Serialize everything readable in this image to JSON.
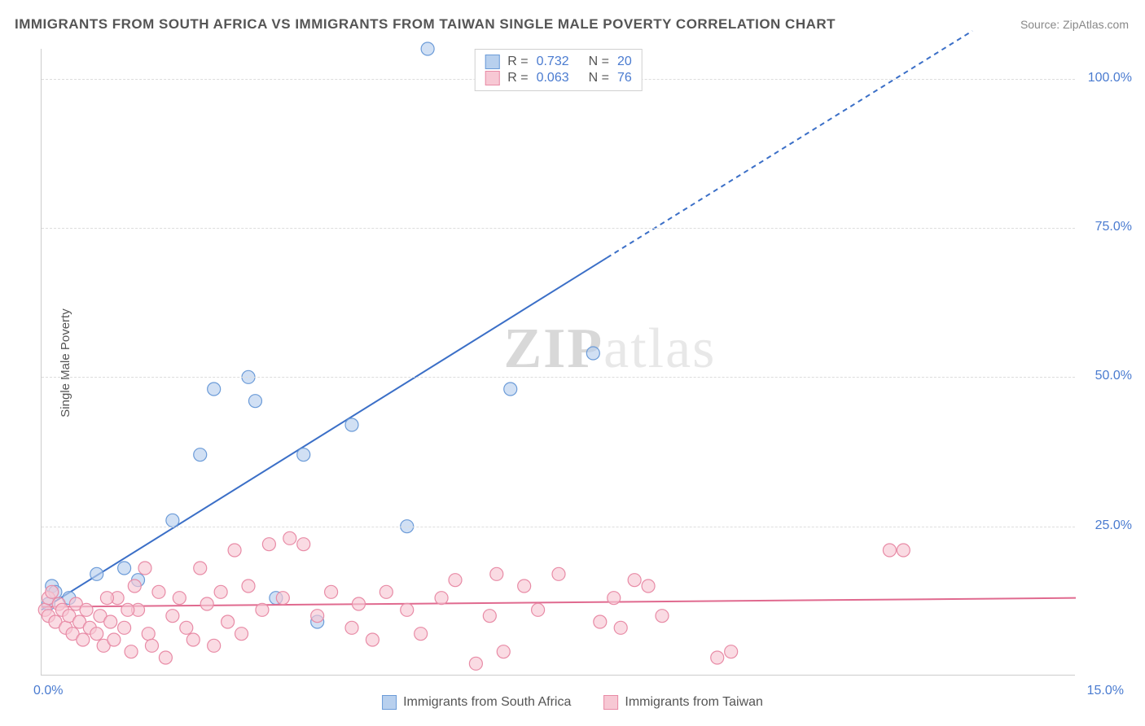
{
  "title": "IMMIGRANTS FROM SOUTH AFRICA VS IMMIGRANTS FROM TAIWAN SINGLE MALE POVERTY CORRELATION CHART",
  "source_prefix": "Source: ",
  "source": "ZipAtlas.com",
  "y_axis_label": "Single Male Poverty",
  "watermark_bold": "ZIP",
  "watermark_rest": "atlas",
  "chart": {
    "type": "scatter-with-regression",
    "background_color": "#ffffff",
    "grid_color": "#dddddd",
    "axis_color": "#cccccc",
    "text_color": "#555555",
    "value_color": "#4a7bd0",
    "xlim": [
      0,
      15
    ],
    "ylim": [
      0,
      105
    ],
    "y_ticks": [
      {
        "value": 25,
        "label": "25.0%"
      },
      {
        "value": 50,
        "label": "50.0%"
      },
      {
        "value": 75,
        "label": "75.0%"
      },
      {
        "value": 100,
        "label": "100.0%"
      }
    ],
    "x_ticks": [
      {
        "value": 0,
        "label": "0.0%"
      },
      {
        "value": 15,
        "label": "15.0%"
      }
    ],
    "marker_radius": 8,
    "marker_stroke_width": 1.2,
    "line_width": 2,
    "series": [
      {
        "id": "south_africa",
        "label": "Immigrants from South Africa",
        "color_fill": "#b8d0ee",
        "color_stroke": "#6b9bd8",
        "line_color": "#3b6fc7",
        "r_label": "R  =",
        "r_value": "0.732",
        "n_label": "N  =",
        "n_value": "20",
        "regression": {
          "x1": 0,
          "y1": 11,
          "x2": 8.2,
          "y2": 70,
          "dash_x2": 13.5,
          "dash_y2": 108
        },
        "points": [
          {
            "x": 0.1,
            "y": 12
          },
          {
            "x": 0.15,
            "y": 15
          },
          {
            "x": 0.2,
            "y": 14
          },
          {
            "x": 0.4,
            "y": 13
          },
          {
            "x": 0.8,
            "y": 17
          },
          {
            "x": 1.2,
            "y": 18
          },
          {
            "x": 1.4,
            "y": 16
          },
          {
            "x": 1.9,
            "y": 26
          },
          {
            "x": 2.3,
            "y": 37
          },
          {
            "x": 2.5,
            "y": 48
          },
          {
            "x": 3.0,
            "y": 50
          },
          {
            "x": 3.1,
            "y": 46
          },
          {
            "x": 3.4,
            "y": 13
          },
          {
            "x": 3.8,
            "y": 37
          },
          {
            "x": 4.0,
            "y": 9
          },
          {
            "x": 4.5,
            "y": 42
          },
          {
            "x": 5.3,
            "y": 25
          },
          {
            "x": 5.6,
            "y": 105
          },
          {
            "x": 6.8,
            "y": 48
          },
          {
            "x": 8.0,
            "y": 54
          }
        ]
      },
      {
        "id": "taiwan",
        "label": "Immigrants from Taiwan",
        "color_fill": "#f7c8d4",
        "color_stroke": "#e88ba6",
        "line_color": "#e06a8f",
        "r_label": "R  =",
        "r_value": "0.063",
        "n_label": "N  =",
        "n_value": "76",
        "regression": {
          "x1": 0,
          "y1": 11.5,
          "x2": 15,
          "y2": 13,
          "dash_x2": 15,
          "dash_y2": 13
        },
        "points": [
          {
            "x": 0.05,
            "y": 11
          },
          {
            "x": 0.1,
            "y": 13
          },
          {
            "x": 0.1,
            "y": 10
          },
          {
            "x": 0.15,
            "y": 14
          },
          {
            "x": 0.2,
            "y": 9
          },
          {
            "x": 0.25,
            "y": 12
          },
          {
            "x": 0.3,
            "y": 11
          },
          {
            "x": 0.35,
            "y": 8
          },
          {
            "x": 0.4,
            "y": 10
          },
          {
            "x": 0.45,
            "y": 7
          },
          {
            "x": 0.5,
            "y": 12
          },
          {
            "x": 0.55,
            "y": 9
          },
          {
            "x": 0.6,
            "y": 6
          },
          {
            "x": 0.65,
            "y": 11
          },
          {
            "x": 0.7,
            "y": 8
          },
          {
            "x": 0.8,
            "y": 7
          },
          {
            "x": 0.85,
            "y": 10
          },
          {
            "x": 0.9,
            "y": 5
          },
          {
            "x": 1.0,
            "y": 9
          },
          {
            "x": 1.05,
            "y": 6
          },
          {
            "x": 1.1,
            "y": 13
          },
          {
            "x": 1.2,
            "y": 8
          },
          {
            "x": 1.3,
            "y": 4
          },
          {
            "x": 1.35,
            "y": 15
          },
          {
            "x": 1.4,
            "y": 11
          },
          {
            "x": 1.5,
            "y": 18
          },
          {
            "x": 1.55,
            "y": 7
          },
          {
            "x": 1.6,
            "y": 5
          },
          {
            "x": 1.7,
            "y": 14
          },
          {
            "x": 1.8,
            "y": 3
          },
          {
            "x": 1.9,
            "y": 10
          },
          {
            "x": 2.0,
            "y": 13
          },
          {
            "x": 2.1,
            "y": 8
          },
          {
            "x": 2.2,
            "y": 6
          },
          {
            "x": 2.3,
            "y": 18
          },
          {
            "x": 2.4,
            "y": 12
          },
          {
            "x": 2.5,
            "y": 5
          },
          {
            "x": 2.6,
            "y": 14
          },
          {
            "x": 2.7,
            "y": 9
          },
          {
            "x": 2.8,
            "y": 21
          },
          {
            "x": 2.9,
            "y": 7
          },
          {
            "x": 3.0,
            "y": 15
          },
          {
            "x": 3.2,
            "y": 11
          },
          {
            "x": 3.3,
            "y": 22
          },
          {
            "x": 3.5,
            "y": 13
          },
          {
            "x": 3.6,
            "y": 23
          },
          {
            "x": 3.8,
            "y": 22
          },
          {
            "x": 4.0,
            "y": 10
          },
          {
            "x": 4.2,
            "y": 14
          },
          {
            "x": 4.5,
            "y": 8
          },
          {
            "x": 4.6,
            "y": 12
          },
          {
            "x": 4.8,
            "y": 6
          },
          {
            "x": 5.0,
            "y": 14
          },
          {
            "x": 5.3,
            "y": 11
          },
          {
            "x": 5.5,
            "y": 7
          },
          {
            "x": 5.8,
            "y": 13
          },
          {
            "x": 6.0,
            "y": 16
          },
          {
            "x": 6.3,
            "y": 2
          },
          {
            "x": 6.5,
            "y": 10
          },
          {
            "x": 6.6,
            "y": 17
          },
          {
            "x": 6.7,
            "y": 4
          },
          {
            "x": 7.0,
            "y": 15
          },
          {
            "x": 7.2,
            "y": 11
          },
          {
            "x": 7.5,
            "y": 17
          },
          {
            "x": 8.1,
            "y": 9
          },
          {
            "x": 8.3,
            "y": 13
          },
          {
            "x": 8.4,
            "y": 8
          },
          {
            "x": 8.6,
            "y": 16
          },
          {
            "x": 8.8,
            "y": 15
          },
          {
            "x": 9.0,
            "y": 10
          },
          {
            "x": 9.8,
            "y": 3
          },
          {
            "x": 10.0,
            "y": 4
          },
          {
            "x": 12.3,
            "y": 21
          },
          {
            "x": 12.5,
            "y": 21
          },
          {
            "x": 1.25,
            "y": 11
          },
          {
            "x": 0.95,
            "y": 13
          }
        ]
      }
    ]
  }
}
